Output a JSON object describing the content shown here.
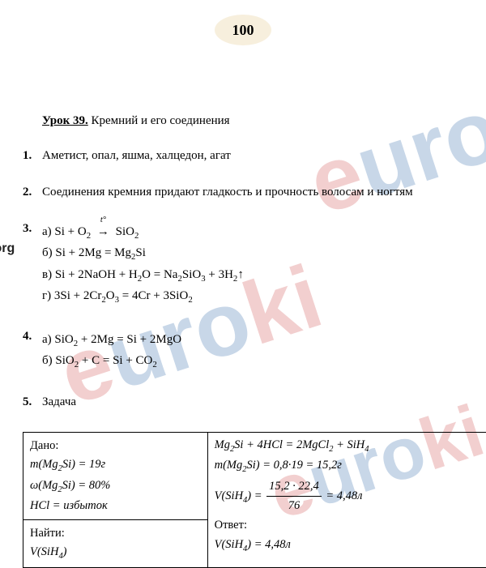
{
  "page_number": "100",
  "lesson": {
    "label": "Урок 39.",
    "title": "Кремний и его соединения"
  },
  "watermark": {
    "text": "euroki",
    "link": "euroki.org",
    "colors": {
      "a": "#f2cfcf",
      "b": "#c8d7e8"
    }
  },
  "items": [
    {
      "n": "1.",
      "text": "Аметист, опал, яшма, халцедон, агат"
    },
    {
      "n": "2.",
      "text": "Соединения кремния придают гладкость и прочность волосам и ногтям"
    },
    {
      "n": "3.",
      "equations": [
        {
          "label": "a)",
          "parts": [
            "Si + O",
            {
              "sub": "2"
            },
            " ",
            {
              "arrow_t": true
            },
            " SiO",
            {
              "sub": "2"
            }
          ]
        },
        {
          "label": "б)",
          "parts": [
            "Si + 2Mg = Mg",
            {
              "sub": "2"
            },
            "Si"
          ]
        },
        {
          "label": "в)",
          "parts": [
            "Si + 2NaOH + H",
            {
              "sub": "2"
            },
            "O = Na",
            {
              "sub": "2"
            },
            "SiO",
            {
              "sub": "3"
            },
            " + 3H",
            {
              "sub": "2"
            },
            {
              "up": true
            }
          ]
        },
        {
          "label": "г)",
          "parts": [
            "3Si + 2Cr",
            {
              "sub": "2"
            },
            "O",
            {
              "sub": "3"
            },
            " = 4Cr + 3SiO",
            {
              "sub": "2"
            }
          ]
        }
      ]
    },
    {
      "n": "4.",
      "equations": [
        {
          "label": "a)",
          "parts": [
            "SiO",
            {
              "sub": "2"
            },
            " + 2Mg = Si + 2MgO"
          ]
        },
        {
          "label": "б)",
          "parts": [
            "SiO",
            {
              "sub": "2"
            },
            " + C = Si + CO",
            {
              "sub": "2"
            }
          ]
        }
      ]
    },
    {
      "n": "5.",
      "text": "Задача"
    }
  ],
  "problem": {
    "given_label": "Дано:",
    "given": [
      {
        "parts": [
          "m(Mg",
          {
            "sub": "2"
          },
          "Si) = 19г"
        ],
        "italic": true
      },
      {
        "parts": [
          "ω(Mg",
          {
            "sub": "2"
          },
          "Si) = 80%"
        ],
        "italic": true
      },
      {
        "parts": [
          "HCl = избыток"
        ],
        "italic": true
      }
    ],
    "find_label": "Найти:",
    "find": {
      "parts": [
        "V(SiH",
        {
          "sub": "4"
        },
        ")"
      ],
      "italic": true
    },
    "solution": [
      {
        "parts": [
          "Mg",
          {
            "sub": "2"
          },
          "Si + 4HCl = 2MgCl",
          {
            "sub": "2"
          },
          " + SiH",
          {
            "sub": "4"
          }
        ],
        "italic": true
      },
      {
        "parts": [
          "m(Mg",
          {
            "sub": "2"
          },
          "Si) = 0,8·19 = 15,2г"
        ],
        "italic": true
      },
      {
        "parts": [
          "V(SiH",
          {
            "sub": "4"
          },
          ") = ",
          {
            "frac": {
              "num": "15,2 · 22,4",
              "den": "76"
            }
          },
          " = 4,48л"
        ],
        "italic": true
      }
    ],
    "answer_label": "Ответ:",
    "answer": {
      "parts": [
        "V(SiH",
        {
          "sub": "4"
        },
        ") = 4,48л"
      ],
      "italic": true
    }
  }
}
